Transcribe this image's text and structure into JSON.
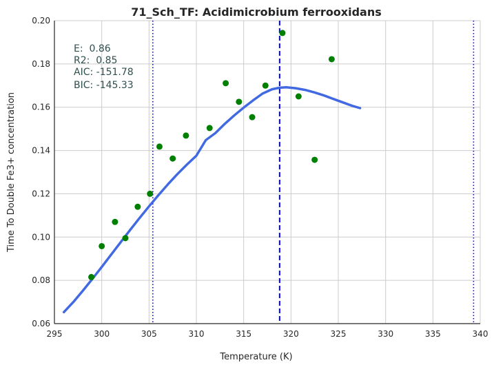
{
  "chart_data": {
    "type": "scatter",
    "title": "71_Sch_TF: Acidimicrobium ferrooxidans",
    "xlabel": "Temperature (K)",
    "ylabel": "Time To Double Fe3+ concentration",
    "xlim": [
      295,
      340
    ],
    "ylim": [
      0.06,
      0.2
    ],
    "xticks": [
      "295",
      "300",
      "305",
      "310",
      "315",
      "320",
      "325",
      "330",
      "335",
      "340"
    ],
    "yticks": [
      "0.06",
      "0.08",
      "0.10",
      "0.12",
      "0.14",
      "0.16",
      "0.18",
      "0.20"
    ],
    "grid": true,
    "points": {
      "x": [
        298.9,
        300.0,
        301.4,
        302.5,
        303.8,
        305.1,
        306.1,
        307.5,
        308.9,
        311.4,
        313.1,
        314.5,
        315.9,
        317.3,
        319.1,
        320.8,
        322.5,
        324.3
      ],
      "y": [
        0.0815,
        0.0958,
        0.107,
        0.0995,
        0.114,
        0.12,
        0.1418,
        0.1363,
        0.1469,
        0.1504,
        0.1711,
        0.1625,
        0.1554,
        0.17,
        0.1943,
        0.165,
        0.1357,
        0.1822
      ],
      "color": "#008000"
    },
    "fit": {
      "x": [
        296.0,
        297.0,
        298.0,
        299.0,
        300.0,
        301.0,
        302.0,
        303.0,
        304.0,
        305.0,
        306.0,
        307.0,
        308.0,
        309.0,
        310.0,
        311.0,
        312.0,
        313.0,
        314.0,
        315.0,
        316.0,
        317.0,
        318.0,
        318.8,
        319.5,
        320.5,
        321.5,
        322.5,
        323.5,
        324.5,
        325.5,
        326.5,
        327.3
      ],
      "y": [
        0.0653,
        0.07,
        0.0752,
        0.0806,
        0.0862,
        0.0919,
        0.0976,
        0.1033,
        0.1088,
        0.1142,
        0.1194,
        0.1244,
        0.1291,
        0.1335,
        0.1376,
        0.1448,
        0.148,
        0.1523,
        0.1562,
        0.1598,
        0.1632,
        0.1663,
        0.1683,
        0.169,
        0.1692,
        0.1688,
        0.168,
        0.1668,
        0.1654,
        0.1638,
        0.1622,
        0.1606,
        0.1596
      ],
      "color": "#4169e1"
    },
    "vlines": [
      {
        "x": 318.8,
        "style": "dashed",
        "color": "#0000ff"
      },
      {
        "x": 305.4,
        "style": "dotted",
        "color": "#0000ff"
      },
      {
        "x": 339.3,
        "style": "dotted",
        "color": "#0000ff"
      }
    ],
    "annotations": [
      "E:  0.86",
      "R2:  0.85",
      "AIC: -151.78",
      "BIC: -145.33"
    ]
  }
}
